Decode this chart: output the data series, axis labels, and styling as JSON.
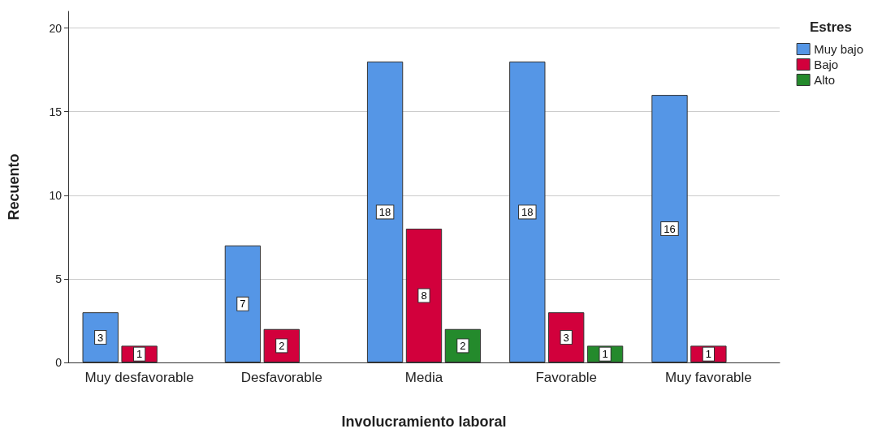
{
  "chart_data": {
    "type": "bar",
    "xlabel": "Involucramiento laboral",
    "ylabel": "Recuento",
    "legend_title": "Estres",
    "categories": [
      "Muy desfavorable",
      "Desfavorable",
      "Media",
      "Favorable",
      "Muy favorable"
    ],
    "series": [
      {
        "name": "Muy bajo",
        "color": "#5596e6",
        "values": [
          3,
          7,
          18,
          18,
          16
        ]
      },
      {
        "name": "Bajo",
        "color": "#d2003c",
        "values": [
          1,
          2,
          8,
          3,
          1
        ]
      },
      {
        "name": "Alto",
        "color": "#248a2c",
        "values": [
          null,
          null,
          2,
          1,
          null
        ]
      }
    ],
    "ylim": [
      0,
      21
    ],
    "yticks": [
      0,
      5,
      10,
      15,
      20
    ],
    "grid": "y",
    "legend": "top right",
    "data_labels": true
  }
}
